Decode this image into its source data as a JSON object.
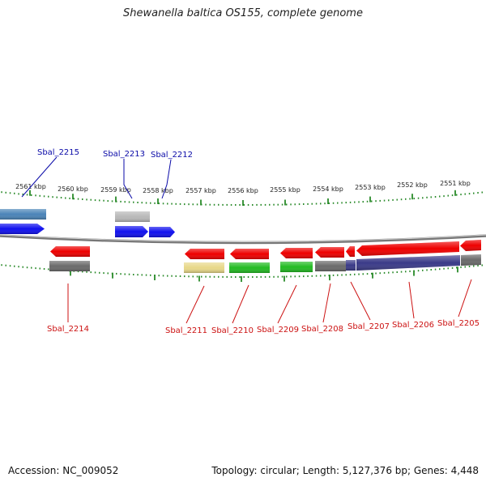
{
  "title": "Shewanella baltica OS155, complete genome",
  "footer": {
    "accession": "Accession: NC_009052",
    "summary": "Topology: circular; Length: 5,127,376 bp; Genes: 4,448"
  },
  "colors": {
    "forward_label": "#0a0aa8",
    "reverse_label": "#cc1111",
    "tick": "#2a8a2a",
    "red_gene": "#ee0000",
    "blue_gene": "#1010ee",
    "steel_blue_feature": "#4a84b8",
    "gray_feature": "#b8b8b8",
    "dark_gray_feature": "#6a6a6a",
    "khaki_feature": "#e8d888",
    "green_feature": "#22bb22",
    "navy_feature": "#3a3a88",
    "backbone": "#777777"
  },
  "scale_ticks": [
    {
      "label": "2561 kbp"
    },
    {
      "label": "2560 kbp"
    },
    {
      "label": "2559 kbp"
    },
    {
      "label": "2558 kbp"
    },
    {
      "label": "2557 kbp"
    },
    {
      "label": "2556 kbp"
    },
    {
      "label": "2555 kbp"
    },
    {
      "label": "2554 kbp"
    },
    {
      "label": "2553 kbp"
    },
    {
      "label": "2552 kbp"
    },
    {
      "label": "2551 kbp"
    }
  ],
  "forward_genes": [
    {
      "label": "Sbal_2215"
    },
    {
      "label": "Sbal_2213"
    },
    {
      "label": "Sbal_2212"
    }
  ],
  "reverse_genes": [
    {
      "label": "Sbal_2214"
    },
    {
      "label": "Sbal_2211"
    },
    {
      "label": "Sbal_2210"
    },
    {
      "label": "Sbal_2209"
    },
    {
      "label": "Sbal_2208"
    },
    {
      "label": "Sbal_2207"
    },
    {
      "label": "Sbal_2206"
    },
    {
      "label": "Sbal_2205"
    }
  ]
}
